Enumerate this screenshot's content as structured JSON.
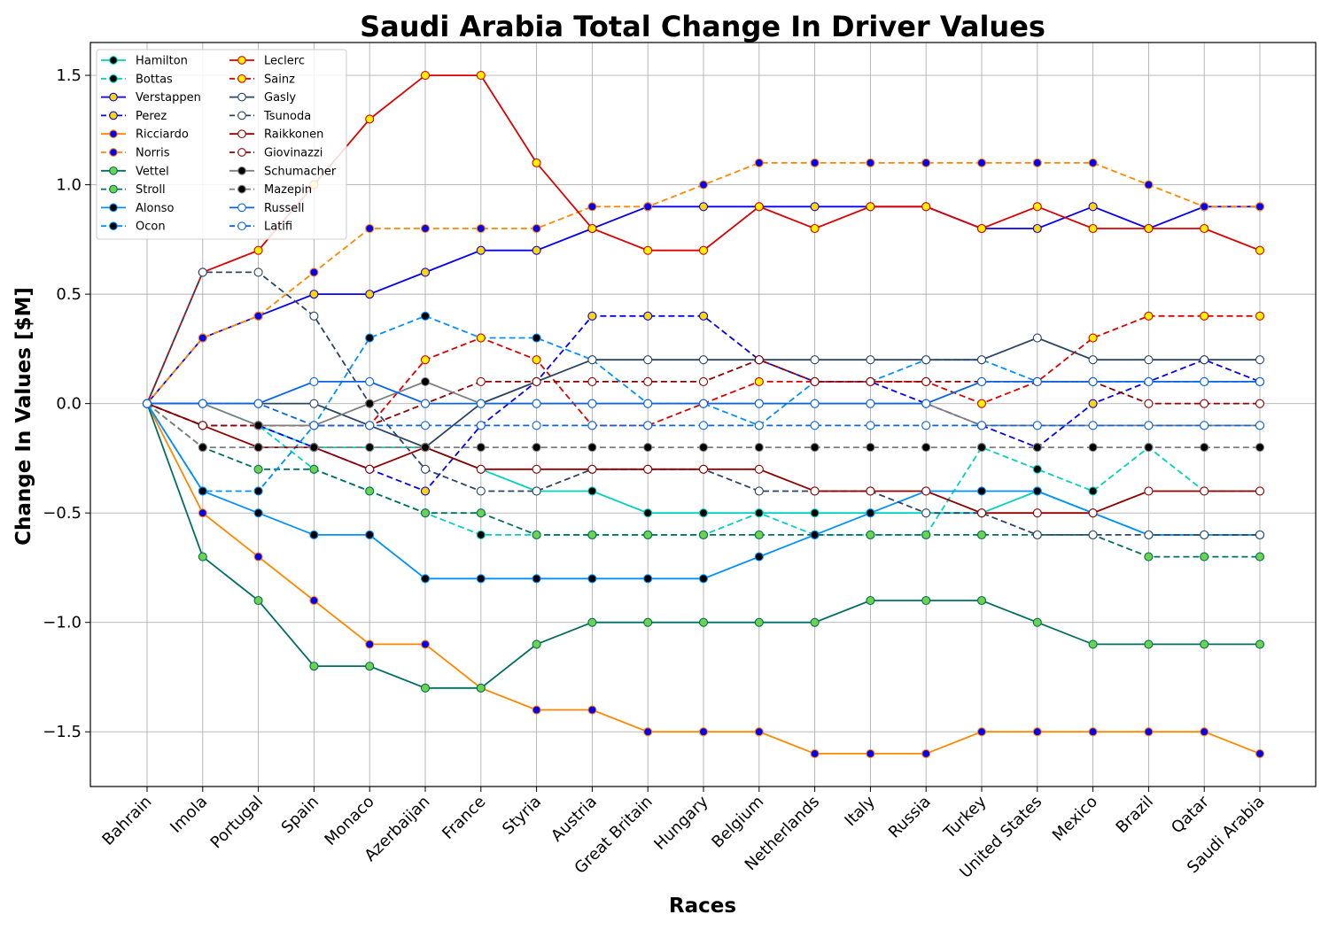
{
  "chart_data": {
    "type": "line",
    "title": "Saudi Arabia Total Change In Driver Values",
    "xlabel": "Races",
    "ylabel": "Change In Values [$M]",
    "ylim": [
      -1.75,
      1.65
    ],
    "yticks": [
      -1.5,
      -1.0,
      -0.5,
      0.0,
      0.5,
      1.0,
      1.5
    ],
    "ytick_labels": [
      "−1.5",
      "−1.0",
      "−0.5",
      "0.0",
      "0.5",
      "1.0",
      "1.5"
    ],
    "grid": true,
    "legend_position": "top-left",
    "categories": [
      "Bahrain",
      "Imola",
      "Portugal",
      "Spain",
      "Monaco",
      "Azerbaijan",
      "France",
      "Styria",
      "Austria",
      "Great Britain",
      "Hungary",
      "Belgium",
      "Netherlands",
      "Italy",
      "Russia",
      "Turkey",
      "United States",
      "Mexico",
      "Brazil",
      "Qatar",
      "Saudi Arabia"
    ],
    "series": [
      {
        "name": "Hamilton",
        "color": "#00d2be",
        "dash": "solid",
        "marker": "#000000",
        "values": [
          0,
          0,
          -0.1,
          -0.2,
          -0.2,
          -0.2,
          -0.3,
          -0.4,
          -0.4,
          -0.5,
          -0.5,
          -0.5,
          -0.5,
          -0.5,
          -0.5,
          -0.5,
          -0.4,
          -0.5,
          -0.6,
          -0.6,
          -0.6
        ]
      },
      {
        "name": "Bottas",
        "color": "#00d2be",
        "dash": "dashed",
        "marker": "#000000",
        "values": [
          0,
          -0.1,
          -0.1,
          -0.3,
          -0.4,
          -0.5,
          -0.6,
          -0.6,
          -0.6,
          -0.6,
          -0.6,
          -0.5,
          -0.6,
          -0.6,
          -0.6,
          -0.2,
          -0.3,
          -0.4,
          -0.2,
          -0.4,
          -0.4
        ]
      },
      {
        "name": "Verstappen",
        "color": "#0600ef",
        "dash": "solid",
        "marker": "#ffd700",
        "values": [
          0,
          0.3,
          0.4,
          0.5,
          0.5,
          0.6,
          0.7,
          0.7,
          0.8,
          0.9,
          0.9,
          0.9,
          0.9,
          0.9,
          0.9,
          0.8,
          0.8,
          0.9,
          0.8,
          0.9,
          0.9
        ]
      },
      {
        "name": "Perez",
        "color": "#0600ef",
        "dash": "dashed",
        "marker": "#ffd700",
        "values": [
          0,
          -0.1,
          -0.1,
          -0.2,
          -0.3,
          -0.4,
          -0.1,
          0.1,
          0.4,
          0.4,
          0.4,
          0.2,
          0.1,
          0.1,
          0,
          -0.1,
          -0.2,
          0,
          0.1,
          0.2,
          0.1
        ]
      },
      {
        "name": "Ricciardo",
        "color": "#ff8700",
        "dash": "solid",
        "marker": "#0600ef",
        "values": [
          0,
          -0.5,
          -0.7,
          -0.9,
          -1.1,
          -1.1,
          -1.3,
          -1.4,
          -1.4,
          -1.5,
          -1.5,
          -1.5,
          -1.6,
          -1.6,
          -1.6,
          -1.5,
          -1.5,
          -1.5,
          -1.5,
          -1.5,
          -1.6
        ]
      },
      {
        "name": "Norris",
        "color": "#ff8700",
        "dash": "dashed",
        "marker": "#0600ef",
        "values": [
          0,
          0.3,
          0.4,
          0.6,
          0.8,
          0.8,
          0.8,
          0.8,
          0.9,
          0.9,
          1.0,
          1.1,
          1.1,
          1.1,
          1.1,
          1.1,
          1.1,
          1.1,
          1.0,
          0.9,
          0.9
        ]
      },
      {
        "name": "Vettel",
        "color": "#006f62",
        "dash": "solid",
        "marker": "#6cd34a",
        "values": [
          0,
          -0.7,
          -0.9,
          -1.2,
          -1.2,
          -1.3,
          -1.3,
          -1.1,
          -1.0,
          -1.0,
          -1.0,
          -1.0,
          -1.0,
          -0.9,
          -0.9,
          -0.9,
          -1.0,
          -1.1,
          -1.1,
          -1.1,
          -1.1
        ]
      },
      {
        "name": "Stroll",
        "color": "#006f62",
        "dash": "dashed",
        "marker": "#6cd34a",
        "values": [
          0,
          -0.2,
          -0.3,
          -0.3,
          -0.4,
          -0.5,
          -0.5,
          -0.6,
          -0.6,
          -0.6,
          -0.6,
          -0.6,
          -0.6,
          -0.6,
          -0.6,
          -0.6,
          -0.6,
          -0.6,
          -0.7,
          -0.7,
          -0.7
        ]
      },
      {
        "name": "Alonso",
        "color": "#0090ff",
        "dash": "solid",
        "marker": "#000000",
        "values": [
          0,
          -0.4,
          -0.5,
          -0.6,
          -0.6,
          -0.8,
          -0.8,
          -0.8,
          -0.8,
          -0.8,
          -0.8,
          -0.7,
          -0.6,
          -0.5,
          -0.4,
          -0.4,
          -0.4,
          -0.5,
          -0.6,
          -0.6,
          -0.6
        ]
      },
      {
        "name": "Ocon",
        "color": "#0090ff",
        "dash": "dashed",
        "marker": "#000000",
        "values": [
          0,
          -0.4,
          -0.4,
          -0.1,
          0.3,
          0.4,
          0.3,
          0.3,
          0.2,
          0,
          0,
          -0.1,
          0.1,
          0.1,
          0.2,
          0.2,
          0.1,
          0.1,
          0.1,
          0.1,
          0.1
        ]
      },
      {
        "name": "Leclerc",
        "color": "#dc0000",
        "dash": "solid",
        "marker": "#fff200",
        "values": [
          0,
          0.6,
          0.7,
          1.0,
          1.3,
          1.5,
          1.5,
          1.1,
          0.8,
          0.7,
          0.7,
          0.9,
          0.8,
          0.9,
          0.9,
          0.8,
          0.9,
          0.8,
          0.8,
          0.8,
          0.7
        ]
      },
      {
        "name": "Sainz",
        "color": "#dc0000",
        "dash": "dashed",
        "marker": "#fff200",
        "values": [
          0,
          -0.1,
          -0.1,
          -0.1,
          -0.1,
          0.2,
          0.3,
          0.2,
          -0.1,
          -0.1,
          0,
          0.1,
          0.1,
          0.1,
          0.1,
          0,
          0.1,
          0.3,
          0.4,
          0.4,
          0.4
        ]
      },
      {
        "name": "Gasly",
        "color": "#2b4562",
        "dash": "solid",
        "marker": "#ffffff",
        "values": [
          0,
          0,
          0,
          0,
          -0.1,
          -0.2,
          0,
          0.1,
          0.2,
          0.2,
          0.2,
          0.2,
          0.2,
          0.2,
          0.2,
          0.2,
          0.3,
          0.2,
          0.2,
          0.2,
          0.2
        ]
      },
      {
        "name": "Tsunoda",
        "color": "#2b4562",
        "dash": "dashed",
        "marker": "#ffffff",
        "values": [
          0,
          0.6,
          0.6,
          0.4,
          0,
          -0.3,
          -0.4,
          -0.4,
          -0.3,
          -0.3,
          -0.3,
          -0.4,
          -0.4,
          -0.4,
          -0.5,
          -0.5,
          -0.6,
          -0.6,
          -0.6,
          -0.6,
          -0.6
        ]
      },
      {
        "name": "Raikkonen",
        "color": "#900000",
        "dash": "solid",
        "marker": "#ffffff",
        "values": [
          0,
          -0.1,
          -0.2,
          -0.2,
          -0.3,
          -0.2,
          -0.3,
          -0.3,
          -0.3,
          -0.3,
          -0.3,
          -0.3,
          -0.4,
          -0.4,
          -0.4,
          -0.5,
          -0.5,
          -0.5,
          -0.4,
          -0.4,
          -0.4
        ]
      },
      {
        "name": "Giovinazzi",
        "color": "#900000",
        "dash": "dashed",
        "marker": "#ffffff",
        "values": [
          0,
          -0.1,
          -0.1,
          -0.1,
          -0.1,
          0,
          0.1,
          0.1,
          0.1,
          0.1,
          0.1,
          0.2,
          0.1,
          0.1,
          0.1,
          0.1,
          0.1,
          0.1,
          0,
          0,
          0
        ]
      },
      {
        "name": "Schumacher",
        "color": "#7f7f7f",
        "dash": "solid",
        "marker": "#000000",
        "values": [
          0,
          0,
          -0.1,
          -0.1,
          0,
          0.1,
          0,
          0,
          0,
          0,
          0,
          0,
          0,
          0,
          0,
          -0.1,
          -0.1,
          -0.1,
          -0.1,
          -0.1,
          -0.1
        ]
      },
      {
        "name": "Mazepin",
        "color": "#7f7f7f",
        "dash": "dashed",
        "marker": "#000000",
        "values": [
          0,
          -0.2,
          -0.2,
          -0.2,
          -0.2,
          -0.2,
          -0.2,
          -0.2,
          -0.2,
          -0.2,
          -0.2,
          -0.2,
          -0.2,
          -0.2,
          -0.2,
          -0.2,
          -0.2,
          -0.2,
          -0.2,
          -0.2,
          -0.2
        ]
      },
      {
        "name": "Russell",
        "color": "#0a64e6",
        "dash": "solid",
        "marker": "#ffffff",
        "values": [
          0,
          0,
          0,
          0.1,
          0.1,
          0,
          0,
          0,
          0,
          0,
          0,
          0,
          0,
          0,
          0,
          0.1,
          0.1,
          0.1,
          0.1,
          0.1,
          0.1
        ]
      },
      {
        "name": "Latifi",
        "color": "#0a64e6",
        "dash": "dashed",
        "marker": "#ffffff",
        "values": [
          0,
          0,
          0,
          -0.1,
          -0.1,
          -0.1,
          -0.1,
          -0.1,
          -0.1,
          -0.1,
          -0.1,
          -0.1,
          -0.1,
          -0.1,
          -0.1,
          -0.1,
          -0.1,
          -0.1,
          -0.1,
          -0.1,
          -0.1
        ]
      }
    ]
  }
}
